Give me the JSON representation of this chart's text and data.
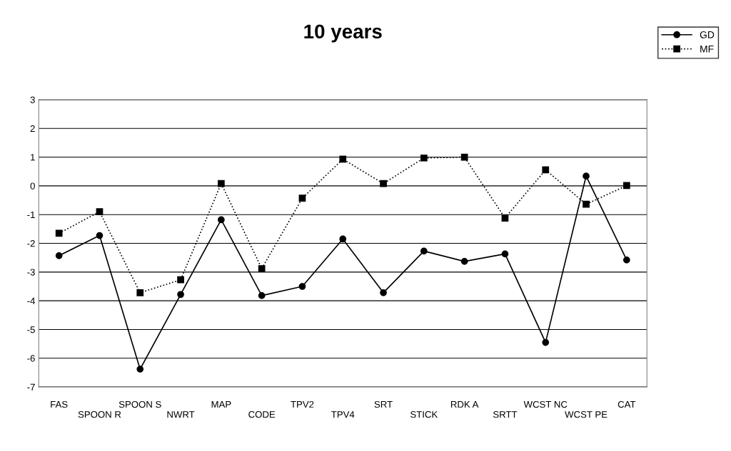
{
  "chart_data": {
    "type": "line",
    "title": "10 years",
    "categories": [
      "FAS",
      "SPOON R",
      "SPOON S",
      "NWRT",
      "MAP",
      "CODE",
      "TPV2",
      "TPV4",
      "SRT",
      "STICK",
      "RDK A",
      "SRTT",
      "WCST NC",
      "WCST PE",
      "CAT"
    ],
    "series": [
      {
        "name": "GD",
        "color": "#000000",
        "marker": "circle",
        "line_style": "solid",
        "values": [
          -2.43,
          -1.73,
          -6.38,
          -3.78,
          -1.18,
          -3.82,
          -3.5,
          -1.85,
          -3.72,
          -2.27,
          -2.63,
          -2.37,
          -5.45,
          0.34,
          -2.58
        ]
      },
      {
        "name": "MF",
        "color": "#000000",
        "marker": "square",
        "line_style": "dotted",
        "values": [
          -1.65,
          -0.9,
          -3.72,
          -3.27,
          0.08,
          -2.88,
          -0.43,
          0.93,
          0.08,
          0.97,
          1.0,
          -1.12,
          0.56,
          -0.64,
          0.01
        ]
      }
    ],
    "ylim": [
      -7,
      3
    ],
    "yticks": [
      -7,
      -6,
      -5,
      -4,
      -3,
      -2,
      -1,
      0,
      1,
      2,
      3
    ],
    "grid": "y",
    "legend": "top right"
  }
}
